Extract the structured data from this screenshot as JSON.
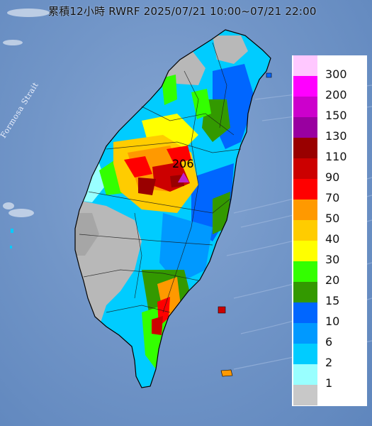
{
  "title": "累積12小時 RWRF 2025/07/21 10:00~07/21 22:00",
  "strait_label": "Formosa Strait",
  "peak": {
    "value": "206",
    "marker_color": "#c020c8"
  },
  "legend": [
    {
      "label": "300",
      "color": "#ffc8ff"
    },
    {
      "label": "200",
      "color": "#ff00ff"
    },
    {
      "label": "150",
      "color": "#cc00cc"
    },
    {
      "label": "130",
      "color": "#9900a0"
    },
    {
      "label": "110",
      "color": "#990000"
    },
    {
      "label": "90",
      "color": "#cc0000"
    },
    {
      "label": "70",
      "color": "#ff0000"
    },
    {
      "label": "50",
      "color": "#ff9900"
    },
    {
      "label": "40",
      "color": "#ffcc00"
    },
    {
      "label": "30",
      "color": "#ffff00"
    },
    {
      "label": "20",
      "color": "#33ff00"
    },
    {
      "label": "15",
      "color": "#339900"
    },
    {
      "label": "10",
      "color": "#0066ff"
    },
    {
      "label": "6",
      "color": "#0099ff"
    },
    {
      "label": "2",
      "color": "#00ccff"
    },
    {
      "label": "1",
      "color": "#99ffff"
    },
    {
      "label": "",
      "color": "#c8c8c8"
    }
  ]
}
